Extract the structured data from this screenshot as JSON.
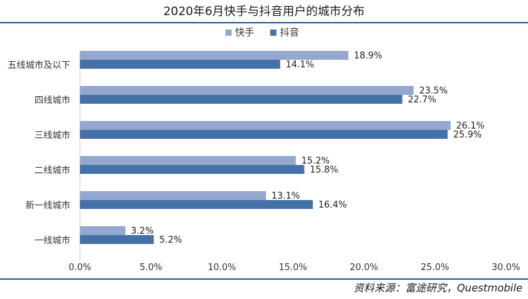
{
  "chart_data": {
    "type": "bar",
    "orientation": "horizontal",
    "title": "2020年6月快手与抖音用户的城市分布",
    "categories": [
      "五线城市及以下",
      "四线城市",
      "三线城市",
      "二线城市",
      "新一线城市",
      "一线城市"
    ],
    "series": [
      {
        "name": "快手",
        "color": "#94a8cf",
        "values": [
          18.9,
          23.5,
          26.1,
          15.2,
          13.1,
          3.2
        ],
        "labels": [
          "18.9%",
          "23.5%",
          "26.1%",
          "15.2%",
          "13.1%",
          "3.2%"
        ]
      },
      {
        "name": "抖音",
        "color": "#4472a8",
        "values": [
          14.1,
          22.7,
          25.9,
          15.8,
          16.4,
          5.2
        ],
        "labels": [
          "14.1%",
          "22.7%",
          "25.9%",
          "15.8%",
          "16.4%",
          "5.2%"
        ]
      }
    ],
    "xlim": [
      0,
      30
    ],
    "xticks": [
      0,
      5,
      10,
      15,
      20,
      25,
      30
    ],
    "xtick_labels": [
      "0.0%",
      "5.0%",
      "10.0%",
      "15.0%",
      "20.0%",
      "25.0%",
      "30.0%"
    ],
    "grid": false,
    "legend_position": "top-center"
  },
  "source_note": "资料来源：富途研究，Questmobile",
  "colors": {
    "divider": "#2e5a8e"
  }
}
